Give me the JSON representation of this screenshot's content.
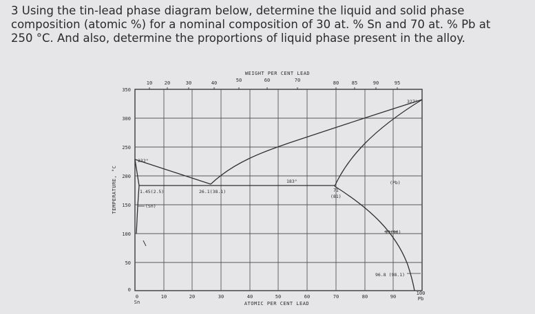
{
  "question": {
    "line1": "3 Using the tin-lead phase diagram below, determine the liquid and solid phase",
    "line2": "composition (atomic %) for a nominal composition of 30 at. % Sn and 70 at. % Pb at",
    "line3": "250 °C. And also, determine the proportions of liquid phase present in the alloy."
  },
  "diagram": {
    "top_axis_title": "WEIGHT PER CENT LEAD",
    "bottom_axis_title": "ATOMIC PER CENT LEAD",
    "y_axis_title": "TEMPERATURE, °C",
    "y_ticks": [
      "350",
      "300",
      "250",
      "200",
      "150",
      "100",
      "50",
      "0"
    ],
    "top_ticks": [
      "10",
      "20",
      "30",
      "40",
      "50",
      "60",
      "70",
      "80",
      "85",
      "90",
      "95"
    ],
    "bottom_ticks": [
      "0",
      "10",
      "20",
      "30",
      "40",
      "50",
      "60",
      "70",
      "80",
      "90",
      "100"
    ],
    "left_end_label": "Sn",
    "right_end_label": "Pb",
    "labels": {
      "sn_melt": "232°",
      "pb_melt": "327°",
      "eutectic_temp": "183°",
      "sn_solubility": "1.45(2.5)",
      "sn_phase": "(Sn)",
      "eutectic_comp": "26.1(38.1)",
      "pb_solubility": "71",
      "pb_solubility_wt": "(81)",
      "pb_phase": "(Pb)",
      "solvus_1": "93(96)",
      "solvus_2": "96.8 (98.1)"
    }
  }
}
